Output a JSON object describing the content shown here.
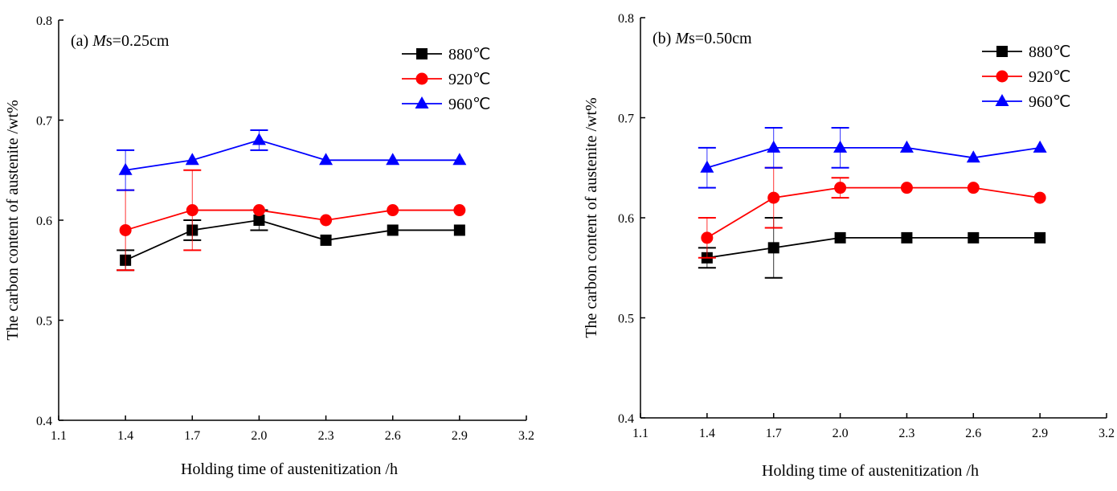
{
  "chart_data": [
    {
      "type": "line",
      "title": "(a) Ms=0.25cm",
      "title_parts": {
        "prefix": "(a) ",
        "italic": "M",
        "rest": "s=0.25cm"
      },
      "xlabel": "Holding time of austenitization /h",
      "ylabel": "The carbon content of austenite /wt%",
      "xlim": [
        1.1,
        3.2
      ],
      "ylim": [
        0.4,
        0.8
      ],
      "xticks": [
        "1.1",
        "1.4",
        "1.7",
        "2.0",
        "2.3",
        "2.6",
        "2.9",
        "3.2"
      ],
      "yticks": [
        "0.4",
        "0.5",
        "0.6",
        "0.7",
        "0.8"
      ],
      "legend_position": "top-right",
      "x": [
        1.4,
        1.7,
        2.0,
        2.3,
        2.6,
        2.9
      ],
      "series": [
        {
          "name": "880℃",
          "color": "#000000",
          "marker": "square",
          "values": [
            0.56,
            0.59,
            0.6,
            0.58,
            0.59,
            0.59
          ],
          "error": [
            0.01,
            0.01,
            0.01,
            0,
            0,
            0
          ]
        },
        {
          "name": "920℃",
          "color": "#ff0000",
          "marker": "circle",
          "values": [
            0.59,
            0.61,
            0.61,
            0.6,
            0.61,
            0.61
          ],
          "error": [
            0.04,
            0.04,
            0,
            0,
            0,
            0
          ]
        },
        {
          "name": "960℃",
          "color": "#0000ff",
          "marker": "triangle",
          "values": [
            0.65,
            0.66,
            0.68,
            0.66,
            0.66,
            0.66
          ],
          "error": [
            0.02,
            0,
            0.01,
            0,
            0,
            0
          ]
        }
      ]
    },
    {
      "type": "line",
      "title": "(b) Ms=0.50cm",
      "title_parts": {
        "prefix": "(b) ",
        "italic": "M",
        "rest": "s=0.50cm"
      },
      "xlabel": "Holding time of austenitization /h",
      "ylabel": "The carbon content of austenite /wt%",
      "xlim": [
        1.1,
        3.2
      ],
      "ylim": [
        0.4,
        0.8
      ],
      "xticks": [
        "1.1",
        "1.4",
        "1.7",
        "2.0",
        "2.3",
        "2.6",
        "2.9",
        "3.2"
      ],
      "yticks": [
        "0.4",
        "0.5",
        "0.6",
        "0.7",
        "0.8"
      ],
      "legend_position": "top-right",
      "x": [
        1.4,
        1.7,
        2.0,
        2.3,
        2.6,
        2.9
      ],
      "series": [
        {
          "name": "880℃",
          "color": "#000000",
          "marker": "square",
          "values": [
            0.56,
            0.57,
            0.58,
            0.58,
            0.58,
            0.58
          ],
          "error": [
            0.01,
            0.03,
            0,
            0,
            0,
            0
          ]
        },
        {
          "name": "920℃",
          "color": "#ff0000",
          "marker": "circle",
          "values": [
            0.58,
            0.62,
            0.63,
            0.63,
            0.63,
            0.62
          ],
          "error": [
            0.02,
            0.03,
            0.01,
            0,
            0,
            0
          ]
        },
        {
          "name": "960℃",
          "color": "#0000ff",
          "marker": "triangle",
          "values": [
            0.65,
            0.67,
            0.67,
            0.67,
            0.66,
            0.67
          ],
          "error": [
            0.02,
            0.02,
            0.02,
            0,
            0,
            0
          ]
        }
      ]
    }
  ]
}
